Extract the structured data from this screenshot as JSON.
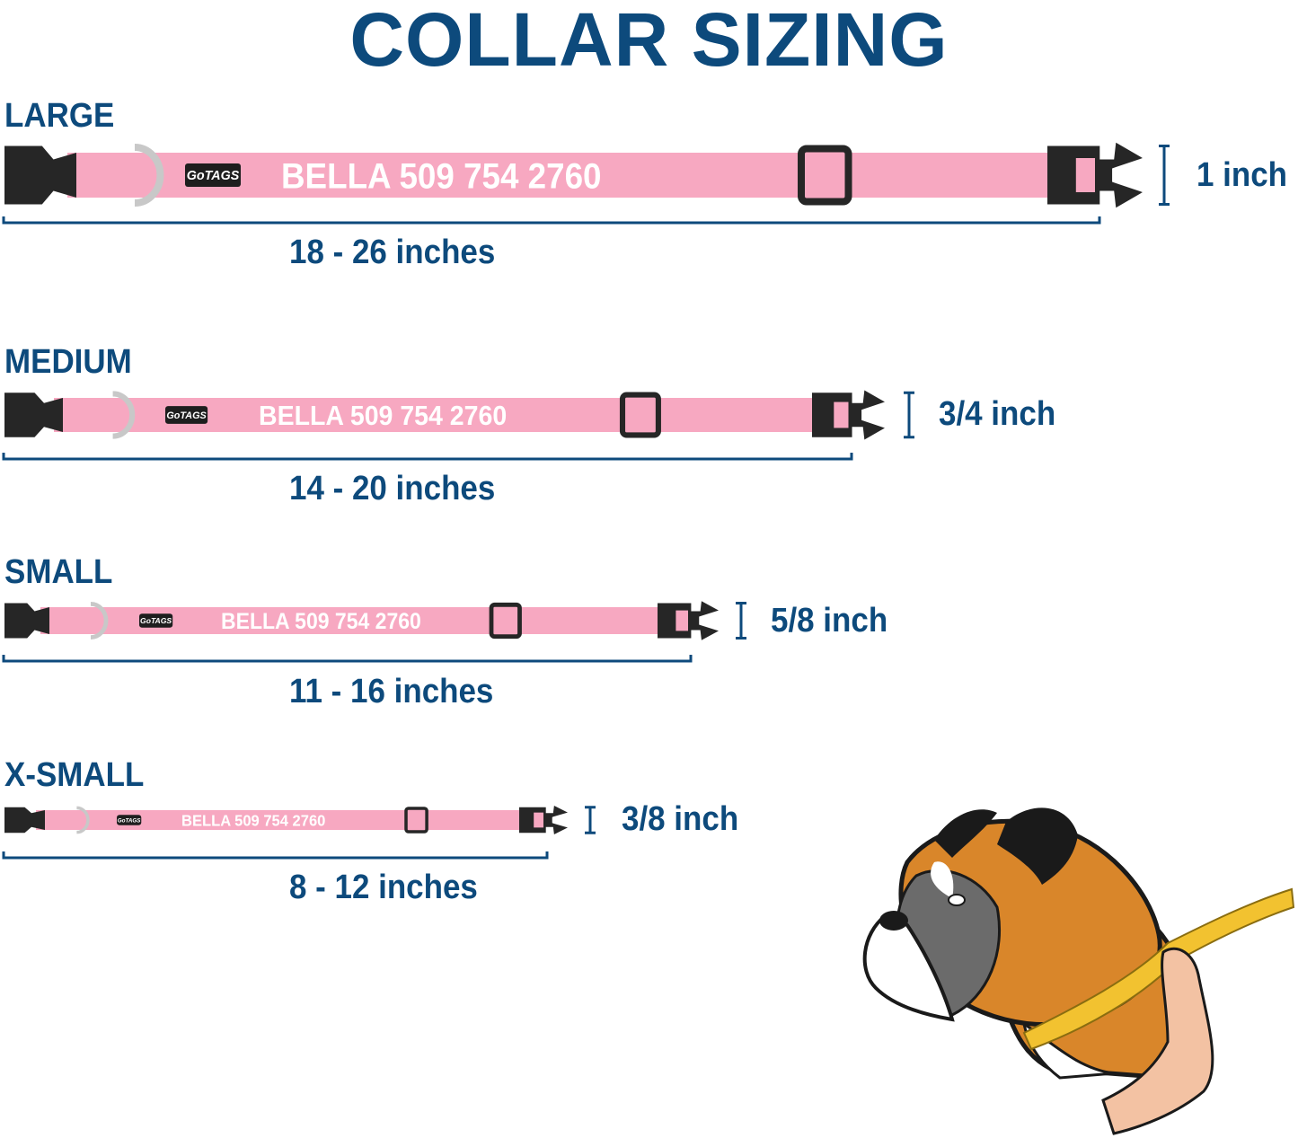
{
  "title": "COLLAR SIZING",
  "colors": {
    "navy": "#0d4a7c",
    "pink": "#f7a8c1",
    "buckle": "#262626",
    "ring": "#c8c8c8"
  },
  "collar_text": "BELLA 509 754 2760",
  "logo_text": "GoTAGS",
  "sizes": [
    {
      "name": "LARGE",
      "range": "18 - 26 inches",
      "width": "1 inch"
    },
    {
      "name": "MEDIUM",
      "range": "14 - 20 inches",
      "width": "3/4 inch"
    },
    {
      "name": "SMALL",
      "range": "11 - 16 inches",
      "width": "5/8 inch"
    },
    {
      "name": "X-SMALL",
      "range": "8 - 12 inches",
      "width": "3/8 inch"
    }
  ],
  "illustration": "boxer-dog-neck-measuring-tape"
}
